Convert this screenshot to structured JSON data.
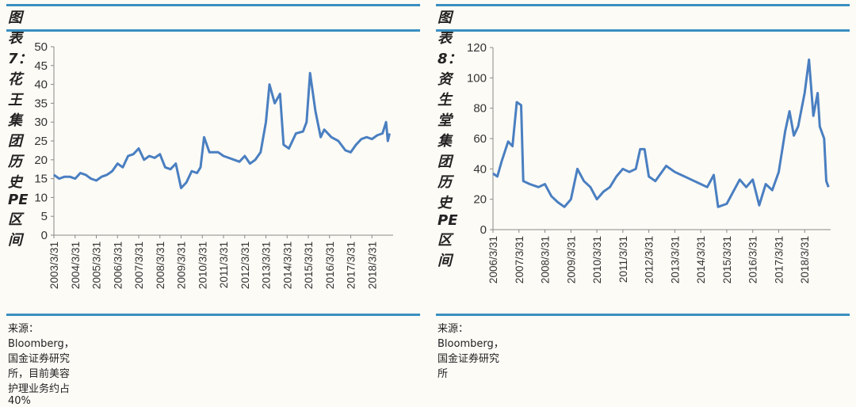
{
  "charts": [
    {
      "title": "图表 7：花王集团历史 PE 区间",
      "source": "来源：Bloomberg，国金证券研究所，目前美容护理业务约占 40%"
    },
    {
      "title": "图表 8：资生堂集团历史 PE 区间",
      "source": "来源：Bloomberg，国金证券研究所"
    }
  ],
  "colors": {
    "line": "#4a7fc1",
    "rule": "#3a8fc0"
  },
  "chart_data": [
    {
      "type": "line",
      "title": "图表 7：花王集团历史 PE 区间",
      "ylim": [
        0,
        50
      ],
      "yticks": [
        0,
        5,
        10,
        15,
        20,
        25,
        30,
        35,
        40,
        45,
        50
      ],
      "xticks": [
        "2003/3/31",
        "2004/3/31",
        "2005/3/31",
        "2006/3/31",
        "2007/3/31",
        "2008/3/31",
        "2009/3/31",
        "2010/3/31",
        "2011/3/31",
        "2012/3/31",
        "2013/3/31",
        "2014/3/31",
        "2015/3/31",
        "2016/3/31",
        "2017/3/31",
        "2018/3/31"
      ],
      "xrange": [
        "2003-03",
        "2019-03"
      ],
      "points": [
        [
          "2003-03",
          16
        ],
        [
          "2003-06",
          15
        ],
        [
          "2003-09",
          15.5
        ],
        [
          "2003-12",
          15.5
        ],
        [
          "2004-03",
          15
        ],
        [
          "2004-06",
          16.5
        ],
        [
          "2004-09",
          16
        ],
        [
          "2004-12",
          15
        ],
        [
          "2005-03",
          14.5
        ],
        [
          "2005-06",
          15.5
        ],
        [
          "2005-09",
          16
        ],
        [
          "2005-12",
          17
        ],
        [
          "2006-03",
          19
        ],
        [
          "2006-06",
          18
        ],
        [
          "2006-09",
          21
        ],
        [
          "2006-12",
          21.5
        ],
        [
          "2007-03",
          23
        ],
        [
          "2007-06",
          20
        ],
        [
          "2007-09",
          21
        ],
        [
          "2007-12",
          20.5
        ],
        [
          "2008-03",
          21.5
        ],
        [
          "2008-06",
          18
        ],
        [
          "2008-09",
          17.5
        ],
        [
          "2008-12",
          19
        ],
        [
          "2009-03",
          12.5
        ],
        [
          "2009-06",
          14
        ],
        [
          "2009-09",
          17
        ],
        [
          "2009-12",
          16.5
        ],
        [
          "2010-02",
          18
        ],
        [
          "2010-04",
          26
        ],
        [
          "2010-07",
          22
        ],
        [
          "2010-12",
          22
        ],
        [
          "2011-03",
          21
        ],
        [
          "2011-06",
          20.5
        ],
        [
          "2011-09",
          20
        ],
        [
          "2011-12",
          19.5
        ],
        [
          "2012-03",
          21
        ],
        [
          "2012-06",
          19
        ],
        [
          "2012-09",
          20
        ],
        [
          "2012-12",
          22
        ],
        [
          "2013-03",
          30
        ],
        [
          "2013-05",
          40
        ],
        [
          "2013-08",
          35
        ],
        [
          "2013-11",
          37.5
        ],
        [
          "2014-01",
          24
        ],
        [
          "2014-04",
          23
        ],
        [
          "2014-08",
          27
        ],
        [
          "2014-12",
          27.5
        ],
        [
          "2015-02",
          30
        ],
        [
          "2015-04",
          43
        ],
        [
          "2015-07",
          33
        ],
        [
          "2015-10",
          26
        ],
        [
          "2015-12",
          28
        ],
        [
          "2016-04",
          26
        ],
        [
          "2016-08",
          25
        ],
        [
          "2016-12",
          22.5
        ],
        [
          "2017-03",
          22
        ],
        [
          "2017-06",
          24
        ],
        [
          "2017-09",
          25.5
        ],
        [
          "2017-12",
          26
        ],
        [
          "2018-03",
          25.5
        ],
        [
          "2018-06",
          26.5
        ],
        [
          "2018-09",
          27
        ],
        [
          "2018-11",
          30
        ],
        [
          "2018-12",
          25
        ],
        [
          "2019-01",
          27
        ]
      ]
    },
    {
      "type": "line",
      "title": "图表 8：资生堂集团历史 PE 区间",
      "ylim": [
        0,
        120
      ],
      "yticks": [
        0,
        20,
        40,
        60,
        80,
        100,
        120
      ],
      "xticks": [
        "2006/3/31",
        "2007/3/31",
        "2008/3/31",
        "2009/3/31",
        "2010/3/31",
        "2011/3/31",
        "2012/3/31",
        "2013/3/31",
        "2014/3/31",
        "2015/3/31",
        "2016/3/31",
        "2017/3/31",
        "2018/3/31"
      ],
      "xrange": [
        "2006-03",
        "2019-03"
      ],
      "points": [
        [
          "2006-03",
          37
        ],
        [
          "2006-05",
          35
        ],
        [
          "2006-07",
          45
        ],
        [
          "2006-10",
          58
        ],
        [
          "2006-12",
          55
        ],
        [
          "2007-02",
          84
        ],
        [
          "2007-04",
          82
        ],
        [
          "2007-05",
          32
        ],
        [
          "2007-08",
          30
        ],
        [
          "2007-12",
          28
        ],
        [
          "2008-03",
          30
        ],
        [
          "2008-06",
          22
        ],
        [
          "2008-09",
          18
        ],
        [
          "2008-12",
          15
        ],
        [
          "2009-03",
          20
        ],
        [
          "2009-06",
          40
        ],
        [
          "2009-09",
          32
        ],
        [
          "2009-12",
          28
        ],
        [
          "2010-03",
          20
        ],
        [
          "2010-06",
          25
        ],
        [
          "2010-09",
          28
        ],
        [
          "2010-12",
          35
        ],
        [
          "2011-03",
          40
        ],
        [
          "2011-06",
          38
        ],
        [
          "2011-09",
          40
        ],
        [
          "2011-11",
          53
        ],
        [
          "2012-01",
          53
        ],
        [
          "2012-03",
          35
        ],
        [
          "2012-06",
          32
        ],
        [
          "2012-09",
          38
        ],
        [
          "2012-11",
          42
        ],
        [
          "2013-03",
          38
        ],
        [
          "2013-06",
          36
        ],
        [
          "2013-09",
          34
        ],
        [
          "2013-12",
          32
        ],
        [
          "2014-03",
          30
        ],
        [
          "2014-06",
          28
        ],
        [
          "2014-09",
          36
        ],
        [
          "2014-11",
          15
        ],
        [
          "2015-03",
          17
        ],
        [
          "2015-06",
          25
        ],
        [
          "2015-09",
          33
        ],
        [
          "2015-12",
          28
        ],
        [
          "2016-03",
          33
        ],
        [
          "2016-06",
          16
        ],
        [
          "2016-09",
          30
        ],
        [
          "2016-12",
          26
        ],
        [
          "2017-03",
          38
        ],
        [
          "2017-06",
          65
        ],
        [
          "2017-08",
          78
        ],
        [
          "2017-10",
          62
        ],
        [
          "2017-12",
          68
        ],
        [
          "2018-03",
          90
        ],
        [
          "2018-05",
          112
        ],
        [
          "2018-07",
          75
        ],
        [
          "2018-09",
          90
        ],
        [
          "2018-10",
          68
        ],
        [
          "2018-12",
          60
        ],
        [
          "2019-01",
          32
        ],
        [
          "2019-02",
          28
        ]
      ]
    }
  ]
}
